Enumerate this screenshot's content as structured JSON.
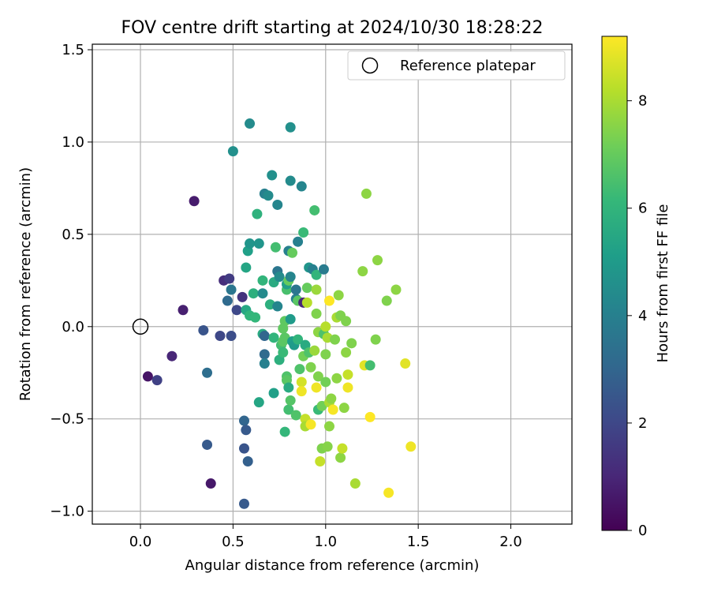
{
  "chart_data": {
    "type": "scatter",
    "title": "FOV centre drift starting at 2024/10/30 18:28:22",
    "xlabel": "Angular distance from reference (arcmin)",
    "ylabel": "Rotation from reference (arcmin)",
    "xlim": [
      -0.26,
      2.33
    ],
    "ylim": [
      -1.07,
      1.53
    ],
    "xticks": [
      "0.0",
      "0.5",
      "1.0",
      "1.5",
      "2.0"
    ],
    "xtick_values": [
      0,
      0.5,
      1.0,
      1.5,
      2.0
    ],
    "yticks": [
      "−1.0",
      "−0.5",
      "0.0",
      "0.5",
      "1.0",
      "1.5"
    ],
    "ytick_values": [
      -1.0,
      -0.5,
      0.0,
      0.5,
      1.0,
      1.5
    ],
    "grid": true,
    "legend": {
      "placement": "top-right",
      "label": "Reference platepar"
    },
    "reference_point": {
      "x": 0,
      "y": 0
    },
    "colorbar": {
      "label": "Hours from first FF file",
      "range": [
        0,
        9.2
      ],
      "ticks": [
        "0",
        "2",
        "4",
        "6",
        "8"
      ],
      "tick_values": [
        0,
        2,
        4,
        6,
        8
      ],
      "colormap": "viridis",
      "colors": [
        "#440154",
        "#482878",
        "#3e4989",
        "#31688e",
        "#26828e",
        "#1f9e89",
        "#35b779",
        "#6ece58",
        "#b5de2b",
        "#fde725"
      ]
    },
    "points": [
      {
        "x": 0.04,
        "y": -0.27,
        "h": 0.5
      },
      {
        "x": 0.09,
        "y": -0.29,
        "h": 1.8
      },
      {
        "x": 0.17,
        "y": -0.16,
        "h": 1.0
      },
      {
        "x": 0.23,
        "y": 0.09,
        "h": 0.8
      },
      {
        "x": 0.29,
        "y": 0.68,
        "h": 0.7
      },
      {
        "x": 0.34,
        "y": -0.02,
        "h": 2.4
      },
      {
        "x": 0.36,
        "y": -0.25,
        "h": 3.3
      },
      {
        "x": 0.36,
        "y": -0.64,
        "h": 2.6
      },
      {
        "x": 0.38,
        "y": -0.85,
        "h": 0.6
      },
      {
        "x": 0.43,
        "y": -0.05,
        "h": 2.0
      },
      {
        "x": 0.45,
        "y": 0.25,
        "h": 1.2
      },
      {
        "x": 0.48,
        "y": 0.26,
        "h": 1.6
      },
      {
        "x": 0.47,
        "y": 0.14,
        "h": 3.2
      },
      {
        "x": 0.49,
        "y": 0.2,
        "h": 3.6
      },
      {
        "x": 0.49,
        "y": -0.05,
        "h": 2.2
      },
      {
        "x": 0.52,
        "y": 0.09,
        "h": 2.0
      },
      {
        "x": 0.5,
        "y": 0.95,
        "h": 4.6
      },
      {
        "x": 0.55,
        "y": 0.16,
        "h": 1.4
      },
      {
        "x": 0.56,
        "y": -0.66,
        "h": 2.4
      },
      {
        "x": 0.56,
        "y": -0.51,
        "h": 3.0
      },
      {
        "x": 0.56,
        "y": -0.96,
        "h": 2.6
      },
      {
        "x": 0.57,
        "y": -0.56,
        "h": 2.6
      },
      {
        "x": 0.58,
        "y": -0.73,
        "h": 2.8
      },
      {
        "x": 0.57,
        "y": 0.32,
        "h": 5.4
      },
      {
        "x": 0.58,
        "y": 0.41,
        "h": 5.2
      },
      {
        "x": 0.59,
        "y": 0.45,
        "h": 4.8
      },
      {
        "x": 0.59,
        "y": 1.1,
        "h": 4.4
      },
      {
        "x": 0.57,
        "y": 0.09,
        "h": 5.5
      },
      {
        "x": 0.59,
        "y": 0.06,
        "h": 6.0
      },
      {
        "x": 0.61,
        "y": 0.18,
        "h": 5.8
      },
      {
        "x": 0.62,
        "y": 0.05,
        "h": 6.1
      },
      {
        "x": 0.63,
        "y": 0.61,
        "h": 5.9
      },
      {
        "x": 0.64,
        "y": 0.45,
        "h": 4.8
      },
      {
        "x": 0.64,
        "y": -0.41,
        "h": 5.4
      },
      {
        "x": 0.66,
        "y": 0.25,
        "h": 6.0
      },
      {
        "x": 0.66,
        "y": 0.18,
        "h": 4.4
      },
      {
        "x": 0.67,
        "y": 0.72,
        "h": 4.0
      },
      {
        "x": 0.69,
        "y": 0.71,
        "h": 4.4
      },
      {
        "x": 0.66,
        "y": -0.04,
        "h": 5.6
      },
      {
        "x": 0.67,
        "y": -0.05,
        "h": 3.0
      },
      {
        "x": 0.67,
        "y": -0.15,
        "h": 3.2
      },
      {
        "x": 0.67,
        "y": -0.2,
        "h": 4.0
      },
      {
        "x": 0.7,
        "y": 0.12,
        "h": 5.8
      },
      {
        "x": 0.71,
        "y": 0.82,
        "h": 4.6
      },
      {
        "x": 0.72,
        "y": -0.06,
        "h": 6.0
      },
      {
        "x": 0.72,
        "y": 0.24,
        "h": 5.6
      },
      {
        "x": 0.72,
        "y": -0.36,
        "h": 5.2
      },
      {
        "x": 0.73,
        "y": 0.43,
        "h": 6.4
      },
      {
        "x": 0.74,
        "y": 0.11,
        "h": 4.2
      },
      {
        "x": 0.74,
        "y": 0.3,
        "h": 3.6
      },
      {
        "x": 0.74,
        "y": 0.66,
        "h": 4.2
      },
      {
        "x": 0.75,
        "y": 0.27,
        "h": 4.4
      },
      {
        "x": 0.75,
        "y": -0.18,
        "h": 5.8
      },
      {
        "x": 0.76,
        "y": -0.1,
        "h": 6.4
      },
      {
        "x": 0.77,
        "y": -0.08,
        "h": 6.8
      },
      {
        "x": 0.77,
        "y": -0.14,
        "h": 6.2
      },
      {
        "x": 0.77,
        "y": -0.01,
        "h": 6.9
      },
      {
        "x": 0.78,
        "y": -0.06,
        "h": 6.8
      },
      {
        "x": 0.78,
        "y": 0.03,
        "h": 6.9
      },
      {
        "x": 0.78,
        "y": -0.57,
        "h": 6.1
      },
      {
        "x": 0.79,
        "y": 0.2,
        "h": 6.5
      },
      {
        "x": 0.79,
        "y": 0.23,
        "h": 5.2
      },
      {
        "x": 0.79,
        "y": -0.27,
        "h": 6.6
      },
      {
        "x": 0.79,
        "y": -0.29,
        "h": 6.8
      },
      {
        "x": 0.8,
        "y": 0.41,
        "h": 4.0
      },
      {
        "x": 0.8,
        "y": -0.33,
        "h": 5.6
      },
      {
        "x": 0.8,
        "y": -0.45,
        "h": 6.4
      },
      {
        "x": 0.8,
        "y": 0.25,
        "h": 7.0
      },
      {
        "x": 0.81,
        "y": 1.08,
        "h": 4.6
      },
      {
        "x": 0.81,
        "y": 0.79,
        "h": 4.4
      },
      {
        "x": 0.81,
        "y": -0.4,
        "h": 6.7
      },
      {
        "x": 0.81,
        "y": 0.27,
        "h": 4.2
      },
      {
        "x": 0.81,
        "y": 0.04,
        "h": 5.0
      },
      {
        "x": 0.82,
        "y": -0.08,
        "h": 5.2
      },
      {
        "x": 0.82,
        "y": 0.4,
        "h": 7.0
      },
      {
        "x": 0.83,
        "y": -0.1,
        "h": 5.0
      },
      {
        "x": 0.84,
        "y": 0.15,
        "h": 4.0
      },
      {
        "x": 0.84,
        "y": 0.2,
        "h": 3.6
      },
      {
        "x": 0.85,
        "y": 0.46,
        "h": 4.0
      },
      {
        "x": 0.84,
        "y": -0.48,
        "h": 6.6
      },
      {
        "x": 0.85,
        "y": -0.07,
        "h": 6.0
      },
      {
        "x": 0.85,
        "y": 0.14,
        "h": 6.8
      },
      {
        "x": 0.86,
        "y": -0.23,
        "h": 6.6
      },
      {
        "x": 0.87,
        "y": -0.3,
        "h": 8.6
      },
      {
        "x": 0.87,
        "y": -0.35,
        "h": 9.0
      },
      {
        "x": 0.87,
        "y": 0.76,
        "h": 4.2
      },
      {
        "x": 0.88,
        "y": 0.51,
        "h": 6.2
      },
      {
        "x": 0.88,
        "y": 0.13,
        "h": 1.0
      },
      {
        "x": 0.88,
        "y": -0.16,
        "h": 7.2
      },
      {
        "x": 0.89,
        "y": -0.5,
        "h": 8.4
      },
      {
        "x": 0.89,
        "y": -0.54,
        "h": 8.0
      },
      {
        "x": 0.89,
        "y": -0.1,
        "h": 5.6
      },
      {
        "x": 0.9,
        "y": 0.13,
        "h": 8.2
      },
      {
        "x": 0.9,
        "y": 0.21,
        "h": 7.0
      },
      {
        "x": 0.91,
        "y": 0.32,
        "h": 4.8
      },
      {
        "x": 0.91,
        "y": -0.14,
        "h": 6.6
      },
      {
        "x": 0.92,
        "y": -0.53,
        "h": 9.1
      },
      {
        "x": 0.92,
        "y": -0.22,
        "h": 7.4
      },
      {
        "x": 0.93,
        "y": 0.31,
        "h": 4.0
      },
      {
        "x": 0.94,
        "y": 0.63,
        "h": 6.4
      },
      {
        "x": 0.94,
        "y": -0.13,
        "h": 7.8
      },
      {
        "x": 0.95,
        "y": 0.07,
        "h": 7.4
      },
      {
        "x": 0.95,
        "y": 0.2,
        "h": 7.8
      },
      {
        "x": 0.95,
        "y": 0.28,
        "h": 6.0
      },
      {
        "x": 0.95,
        "y": -0.33,
        "h": 9.0
      },
      {
        "x": 0.96,
        "y": -0.03,
        "h": 7.6
      },
      {
        "x": 0.96,
        "y": -0.27,
        "h": 7.4
      },
      {
        "x": 0.96,
        "y": -0.45,
        "h": 6.2
      },
      {
        "x": 0.97,
        "y": -0.73,
        "h": 8.4
      },
      {
        "x": 0.98,
        "y": -0.43,
        "h": 7.2
      },
      {
        "x": 0.98,
        "y": -0.66,
        "h": 7.4
      },
      {
        "x": 0.99,
        "y": 0.31,
        "h": 3.8
      },
      {
        "x": 0.99,
        "y": -0.04,
        "h": 6.6
      },
      {
        "x": 1.0,
        "y": -0.3,
        "h": 7.2
      },
      {
        "x": 1.0,
        "y": -0.15,
        "h": 7.4
      },
      {
        "x": 1.0,
        "y": 0.0,
        "h": 8.2
      },
      {
        "x": 1.01,
        "y": -0.06,
        "h": 8.0
      },
      {
        "x": 1.01,
        "y": -0.65,
        "h": 7.5
      },
      {
        "x": 1.02,
        "y": -0.41,
        "h": 8.0
      },
      {
        "x": 1.02,
        "y": 0.14,
        "h": 9.2
      },
      {
        "x": 1.02,
        "y": -0.54,
        "h": 7.6
      },
      {
        "x": 1.03,
        "y": -0.39,
        "h": 7.6
      },
      {
        "x": 1.04,
        "y": -0.45,
        "h": 9.1
      },
      {
        "x": 1.05,
        "y": -0.07,
        "h": 7.4
      },
      {
        "x": 1.06,
        "y": 0.05,
        "h": 8.0
      },
      {
        "x": 1.06,
        "y": -0.28,
        "h": 7.6
      },
      {
        "x": 1.07,
        "y": 0.17,
        "h": 7.6
      },
      {
        "x": 1.08,
        "y": -0.71,
        "h": 7.6
      },
      {
        "x": 1.08,
        "y": 0.06,
        "h": 7.4
      },
      {
        "x": 1.09,
        "y": -0.66,
        "h": 8.4
      },
      {
        "x": 1.1,
        "y": -0.44,
        "h": 7.6
      },
      {
        "x": 1.11,
        "y": -0.14,
        "h": 7.6
      },
      {
        "x": 1.11,
        "y": 0.03,
        "h": 7.4
      },
      {
        "x": 1.12,
        "y": -0.33,
        "h": 9.0
      },
      {
        "x": 1.12,
        "y": -0.26,
        "h": 8.4
      },
      {
        "x": 1.14,
        "y": -0.09,
        "h": 7.4
      },
      {
        "x": 1.16,
        "y": -0.85,
        "h": 8.0
      },
      {
        "x": 1.2,
        "y": 0.3,
        "h": 7.6
      },
      {
        "x": 1.21,
        "y": -0.21,
        "h": 8.8
      },
      {
        "x": 1.22,
        "y": 0.72,
        "h": 7.6
      },
      {
        "x": 1.24,
        "y": -0.49,
        "h": 9.2
      },
      {
        "x": 1.24,
        "y": -0.21,
        "h": 6.4
      },
      {
        "x": 1.27,
        "y": -0.07,
        "h": 7.4
      },
      {
        "x": 1.28,
        "y": 0.36,
        "h": 7.6
      },
      {
        "x": 1.33,
        "y": 0.14,
        "h": 7.4
      },
      {
        "x": 1.34,
        "y": -0.9,
        "h": 9.1
      },
      {
        "x": 1.38,
        "y": 0.2,
        "h": 7.6
      },
      {
        "x": 1.43,
        "y": -0.2,
        "h": 8.8
      },
      {
        "x": 1.46,
        "y": -0.65,
        "h": 9.0
      }
    ]
  }
}
